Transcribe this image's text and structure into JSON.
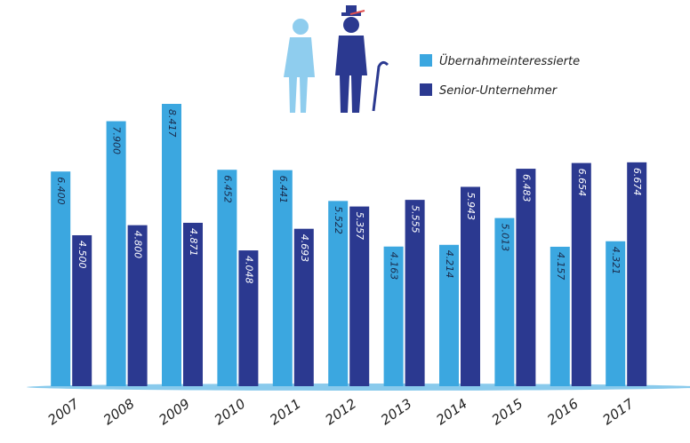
{
  "chart_data": {
    "type": "bar",
    "categories": [
      "2007",
      "2008",
      "2009",
      "2010",
      "2011",
      "2012",
      "2013",
      "2014",
      "2015",
      "2016",
      "2017"
    ],
    "series": [
      {
        "name": "Übernahmeinteressierte",
        "color": "#3ba7e0",
        "values": [
          6400,
          7900,
          8417,
          6452,
          6441,
          5522,
          4163,
          4214,
          5013,
          4157,
          4321
        ],
        "value_labels": [
          "6.400",
          "7.900",
          "8.417",
          "6.452",
          "6.441",
          "5.522",
          "4.163",
          "4.214",
          "5.013",
          "4.157",
          "4.321"
        ]
      },
      {
        "name": "Senior-Unternehmer",
        "color": "#2b3990",
        "values": [
          4500,
          4800,
          4871,
          4048,
          4693,
          5357,
          5555,
          5943,
          6483,
          6654,
          6674
        ],
        "value_labels": [
          "4.500",
          "4.800",
          "4.871",
          "4.048",
          "4.693",
          "5.357",
          "5.555",
          "5.943",
          "6.483",
          "6.654",
          "6.674"
        ]
      }
    ],
    "legend": "top-right"
  }
}
